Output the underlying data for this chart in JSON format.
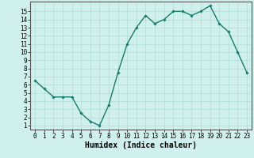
{
  "x": [
    0,
    1,
    2,
    3,
    4,
    5,
    6,
    7,
    8,
    9,
    10,
    11,
    12,
    13,
    14,
    15,
    16,
    17,
    18,
    19,
    20,
    21,
    22,
    23
  ],
  "y": [
    6.5,
    5.5,
    4.5,
    4.5,
    4.5,
    2.5,
    1.5,
    1.0,
    3.5,
    7.5,
    11.0,
    13.0,
    14.5,
    13.5,
    14.0,
    15.0,
    15.0,
    14.5,
    15.0,
    15.7,
    13.5,
    12.5,
    10.0,
    7.5
  ],
  "line_color": "#1a7a6e",
  "marker": "D",
  "marker_size": 1.8,
  "bg_color": "#cff0ec",
  "grid_color": "#b0ddd8",
  "xlabel": "Humidex (Indice chaleur)",
  "xlim": [
    -0.5,
    23.5
  ],
  "ylim": [
    0.5,
    16.2
  ],
  "yticks": [
    1,
    2,
    3,
    4,
    5,
    6,
    7,
    8,
    9,
    10,
    11,
    12,
    13,
    14,
    15
  ],
  "xticks": [
    0,
    1,
    2,
    3,
    4,
    5,
    6,
    7,
    8,
    9,
    10,
    11,
    12,
    13,
    14,
    15,
    16,
    17,
    18,
    19,
    20,
    21,
    22,
    23
  ],
  "tick_fontsize": 5.5,
  "xlabel_fontsize": 7.0,
  "linewidth": 1.0
}
